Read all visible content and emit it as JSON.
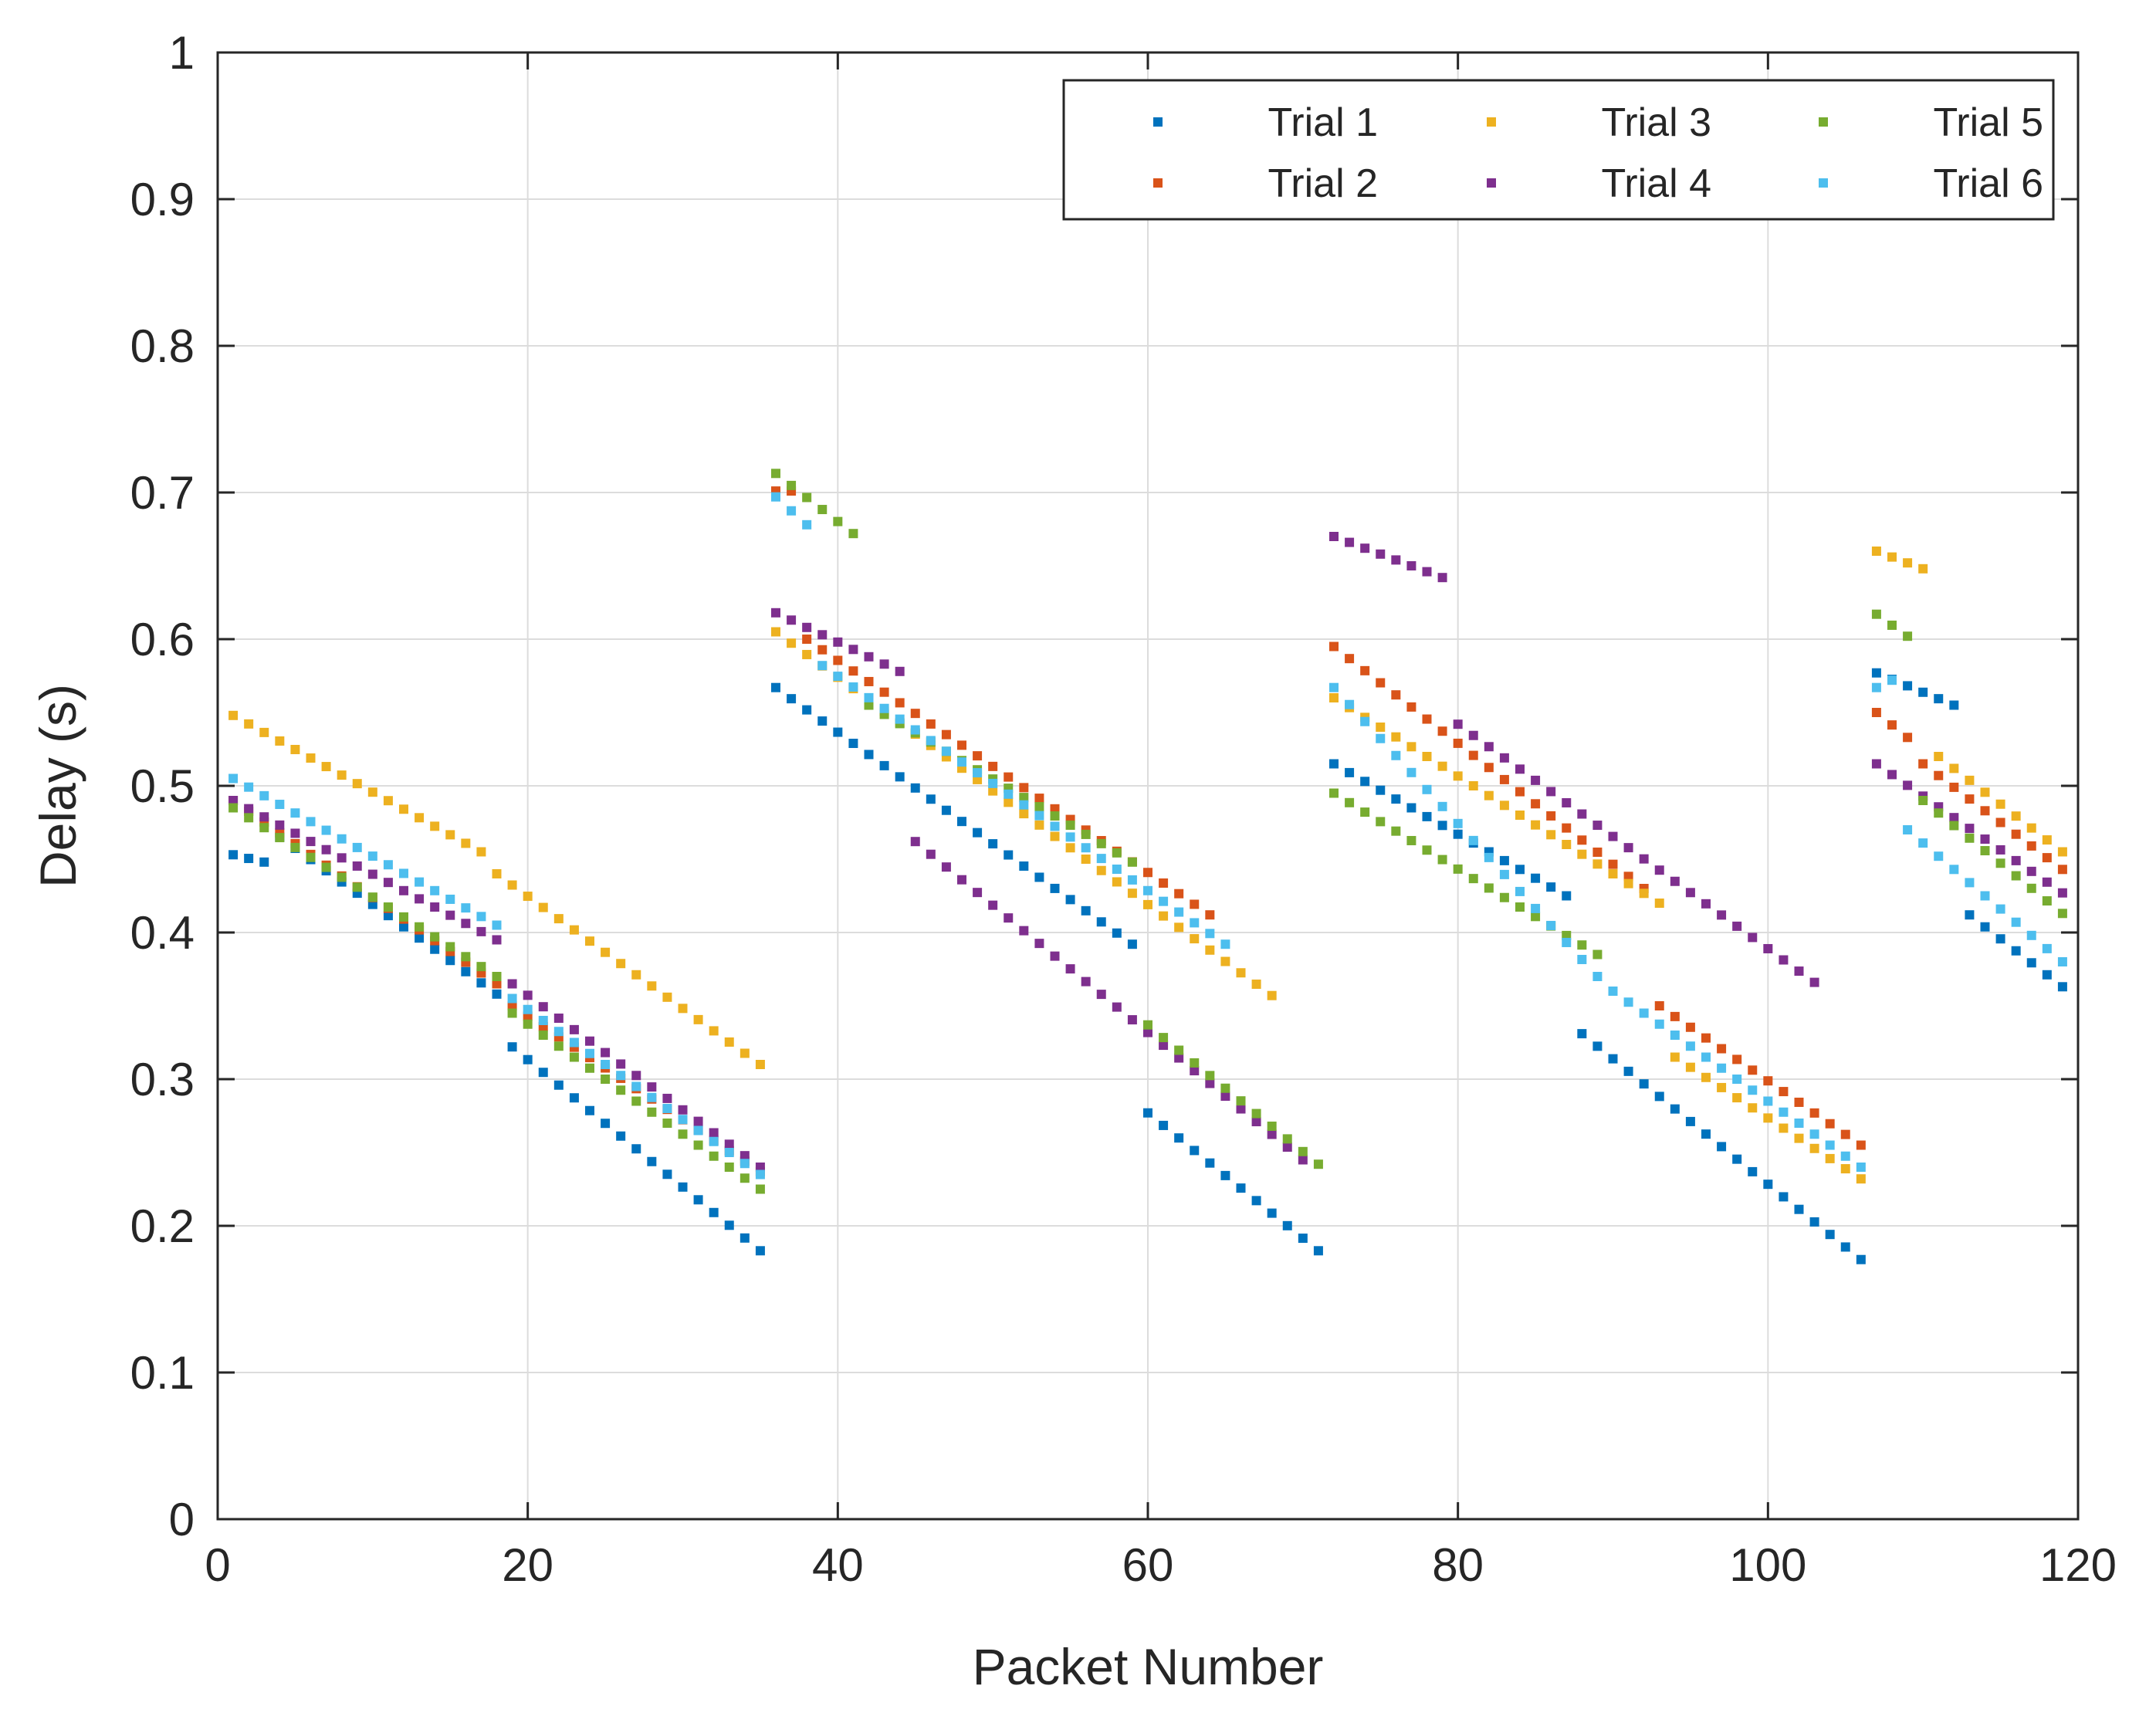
{
  "chart_data": {
    "type": "scatter",
    "title": "",
    "xlabel": "Packet Number",
    "ylabel": "Delay (s)",
    "xlim": [
      0,
      120
    ],
    "ylim": [
      0,
      1
    ],
    "xticks": [
      "0",
      "20",
      "40",
      "60",
      "80",
      "100",
      "120"
    ],
    "yticks": [
      "0",
      "0.1",
      "0.2",
      "0.3",
      "0.4",
      "0.5",
      "0.6",
      "0.7",
      "0.8",
      "0.9",
      "1"
    ],
    "grid": true,
    "legend_position": "top-right",
    "series": [
      {
        "name": "Trial 1",
        "color": "#0072BD",
        "segments": [
          {
            "x0": 1,
            "x1": 3,
            "y0": 0.453,
            "y1": 0.448
          },
          {
            "x0": 4,
            "x1": 18,
            "y0": 0.465,
            "y1": 0.358
          },
          {
            "x0": 19,
            "x1": 35,
            "y0": 0.322,
            "y1": 0.183
          },
          {
            "x0": 36,
            "x1": 59,
            "y0": 0.567,
            "y1": 0.392
          },
          {
            "x0": 60,
            "x1": 71,
            "y0": 0.277,
            "y1": 0.183
          },
          {
            "x0": 72,
            "x1": 87,
            "y0": 0.515,
            "y1": 0.425
          },
          {
            "x0": 88,
            "x1": 106,
            "y0": 0.331,
            "y1": 0.177
          },
          {
            "x0": 107,
            "x1": 112,
            "y0": 0.577,
            "y1": 0.555
          },
          {
            "x0": 113,
            "x1": 119,
            "y0": 0.412,
            "y1": 0.363
          }
        ]
      },
      {
        "name": "Trial 2",
        "color": "#D95319",
        "segments": [
          {
            "x0": 1,
            "x1": 18,
            "y0": 0.49,
            "y1": 0.365
          },
          {
            "x0": 19,
            "x1": 35,
            "y0": 0.35,
            "y1": 0.237
          },
          {
            "x0": 36,
            "x1": 37,
            "y0": 0.701,
            "y1": 0.701
          },
          {
            "x0": 38,
            "x1": 64,
            "y0": 0.6,
            "y1": 0.412
          },
          {
            "x0": 72,
            "x1": 92,
            "y0": 0.595,
            "y1": 0.43
          },
          {
            "x0": 93,
            "x1": 106,
            "y0": 0.35,
            "y1": 0.255
          },
          {
            "x0": 107,
            "x1": 109,
            "y0": 0.55,
            "y1": 0.533
          },
          {
            "x0": 110,
            "x1": 119,
            "y0": 0.515,
            "y1": 0.443
          }
        ]
      },
      {
        "name": "Trial 3",
        "color": "#EDB120",
        "segments": [
          {
            "x0": 1,
            "x1": 17,
            "y0": 0.548,
            "y1": 0.455
          },
          {
            "x0": 18,
            "x1": 35,
            "y0": 0.44,
            "y1": 0.31
          },
          {
            "x0": 36,
            "x1": 68,
            "y0": 0.605,
            "y1": 0.357
          },
          {
            "x0": 72,
            "x1": 93,
            "y0": 0.56,
            "y1": 0.42
          },
          {
            "x0": 94,
            "x1": 106,
            "y0": 0.315,
            "y1": 0.232
          },
          {
            "x0": 107,
            "x1": 110,
            "y0": 0.66,
            "y1": 0.648
          },
          {
            "x0": 111,
            "x1": 119,
            "y0": 0.52,
            "y1": 0.455
          }
        ]
      },
      {
        "name": "Trial 4",
        "color": "#7E2F8E",
        "segments": [
          {
            "x0": 1,
            "x1": 18,
            "y0": 0.49,
            "y1": 0.395
          },
          {
            "x0": 19,
            "x1": 35,
            "y0": 0.365,
            "y1": 0.24
          },
          {
            "x0": 36,
            "x1": 44,
            "y0": 0.618,
            "y1": 0.578
          },
          {
            "x0": 45,
            "x1": 70,
            "y0": 0.462,
            "y1": 0.245
          },
          {
            "x0": 72,
            "x1": 79,
            "y0": 0.67,
            "y1": 0.642
          },
          {
            "x0": 80,
            "x1": 103,
            "y0": 0.542,
            "y1": 0.366
          },
          {
            "x0": 107,
            "x1": 119,
            "y0": 0.515,
            "y1": 0.427
          }
        ]
      },
      {
        "name": "Trial 5",
        "color": "#77AC30",
        "segments": [
          {
            "x0": 1,
            "x1": 18,
            "y0": 0.485,
            "y1": 0.37
          },
          {
            "x0": 19,
            "x1": 35,
            "y0": 0.345,
            "y1": 0.225
          },
          {
            "x0": 36,
            "x1": 41,
            "y0": 0.713,
            "y1": 0.672
          },
          {
            "x0": 42,
            "x1": 59,
            "y0": 0.555,
            "y1": 0.448
          },
          {
            "x0": 60,
            "x1": 71,
            "y0": 0.337,
            "y1": 0.242
          },
          {
            "x0": 72,
            "x1": 89,
            "y0": 0.495,
            "y1": 0.385
          },
          {
            "x0": 107,
            "x1": 109,
            "y0": 0.617,
            "y1": 0.602
          },
          {
            "x0": 110,
            "x1": 119,
            "y0": 0.49,
            "y1": 0.413
          }
        ]
      },
      {
        "name": "Trial 6",
        "color": "#4DBEEE",
        "segments": [
          {
            "x0": 1,
            "x1": 18,
            "y0": 0.505,
            "y1": 0.405
          },
          {
            "x0": 19,
            "x1": 35,
            "y0": 0.355,
            "y1": 0.235
          },
          {
            "x0": 36,
            "x1": 38,
            "y0": 0.697,
            "y1": 0.678
          },
          {
            "x0": 39,
            "x1": 65,
            "y0": 0.582,
            "y1": 0.392
          },
          {
            "x0": 72,
            "x1": 89,
            "y0": 0.567,
            "y1": 0.37
          },
          {
            "x0": 90,
            "x1": 106,
            "y0": 0.36,
            "y1": 0.24
          },
          {
            "x0": 107,
            "x1": 108,
            "y0": 0.567,
            "y1": 0.572
          },
          {
            "x0": 109,
            "x1": 119,
            "y0": 0.47,
            "y1": 0.38
          }
        ]
      }
    ]
  }
}
